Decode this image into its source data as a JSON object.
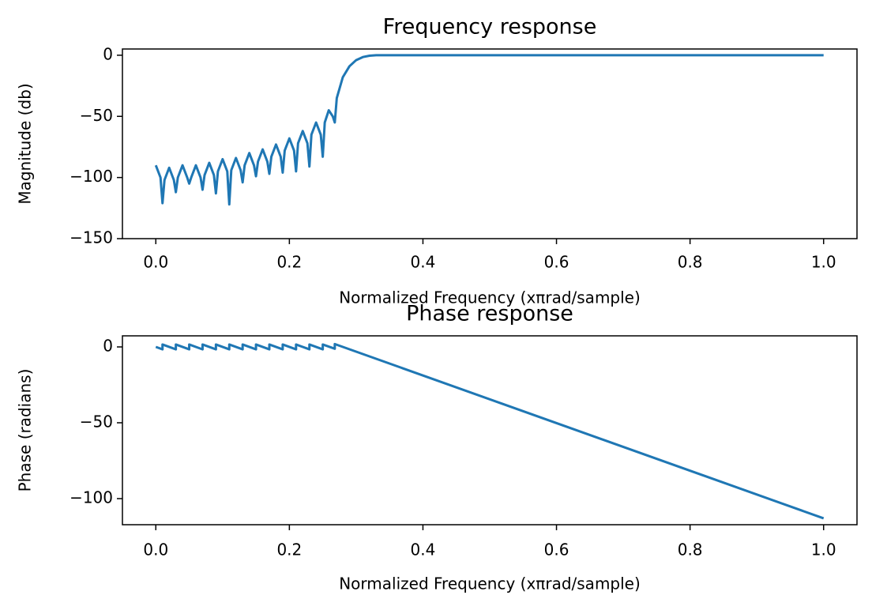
{
  "chart_data": [
    {
      "type": "line",
      "title": "Frequency response",
      "x_label": "Normalized Frequency (xπrad/sample)",
      "y_label": "Magnitude (db)",
      "color": "#1f77b4",
      "grid": false,
      "xlim": [
        -0.05,
        1.05
      ],
      "ylim": [
        -150,
        5.1
      ],
      "xticks": [
        {
          "value": 0,
          "label": "0.0"
        },
        0.2,
        0.4,
        0.6,
        0.8,
        {
          "value": 1,
          "label": "1.0"
        }
      ],
      "yticks": [
        0,
        {
          "value": -50,
          "label": "−50"
        },
        {
          "value": -100,
          "label": "−100"
        },
        {
          "value": -150,
          "label": "−150"
        }
      ],
      "x": [
        0,
        0.007,
        0.01,
        0.013,
        0.02,
        0.027,
        0.03,
        0.033,
        0.04,
        0.047,
        0.05,
        0.053,
        0.06,
        0.067,
        0.07,
        0.073,
        0.08,
        0.087,
        0.09,
        0.093,
        0.1,
        0.107,
        0.11,
        0.113,
        0.12,
        0.127,
        0.13,
        0.133,
        0.14,
        0.147,
        0.15,
        0.153,
        0.16,
        0.167,
        0.17,
        0.173,
        0.18,
        0.187,
        0.19,
        0.193,
        0.2,
        0.207,
        0.21,
        0.213,
        0.22,
        0.227,
        0.23,
        0.233,
        0.24,
        0.247,
        0.25,
        0.253,
        0.259,
        0.265,
        0.268,
        0.271,
        0.28,
        0.29,
        0.3,
        0.31,
        0.32,
        0.33,
        0.34,
        1.0
      ],
      "values": [
        -90,
        -100,
        -121,
        -102,
        -92,
        -102,
        -112,
        -100,
        -90,
        -100,
        -105,
        -100,
        -90,
        -100,
        -110,
        -98,
        -88,
        -98,
        -113,
        -95,
        -85,
        -95,
        -122,
        -94,
        -84,
        -94,
        -104,
        -90,
        -80,
        -90,
        -99,
        -87,
        -77,
        -87,
        -97,
        -83,
        -73,
        -83,
        -96,
        -78,
        -68,
        -78,
        -95,
        -72,
        -62,
        -72,
        -91,
        -65,
        -55,
        -65,
        -83,
        -55,
        -45,
        -50,
        -55,
        -35,
        -18,
        -9,
        -4,
        -1.5,
        -0.4,
        0,
        0,
        0
      ]
    },
    {
      "type": "line",
      "title": "Phase response",
      "x_label": "Normalized Frequency (xπrad/sample)",
      "y_label": "Phase (radians)",
      "color": "#1f77b4",
      "grid": false,
      "xlim": [
        -0.05,
        1.05
      ],
      "ylim": [
        -117.2,
        7.3
      ],
      "xticks": [
        {
          "value": 0,
          "label": "0.0"
        },
        0.2,
        0.4,
        0.6,
        0.8,
        {
          "value": 1,
          "label": "1.0"
        }
      ],
      "yticks": [
        0,
        {
          "value": -50,
          "label": "−50"
        },
        {
          "value": -100,
          "label": "−100"
        }
      ],
      "x": [
        0,
        0.01,
        0.01,
        0.03,
        0.03,
        0.05,
        0.05,
        0.07,
        0.07,
        0.09,
        0.09,
        0.11,
        0.11,
        0.13,
        0.13,
        0.15,
        0.15,
        0.17,
        0.17,
        0.19,
        0.19,
        0.21,
        0.21,
        0.23,
        0.23,
        0.25,
        0.25,
        0.268,
        0.268,
        1.0
      ],
      "values": [
        0,
        -1.6,
        1.6,
        -1.6,
        1.6,
        -1.6,
        1.6,
        -1.6,
        1.6,
        -1.6,
        1.6,
        -1.6,
        1.6,
        -1.6,
        1.6,
        -1.6,
        1.6,
        -1.6,
        1.6,
        -1.6,
        1.6,
        -1.6,
        1.6,
        -1.6,
        1.6,
        -1.6,
        1.6,
        -1.2,
        1.9,
        -113
      ]
    }
  ]
}
